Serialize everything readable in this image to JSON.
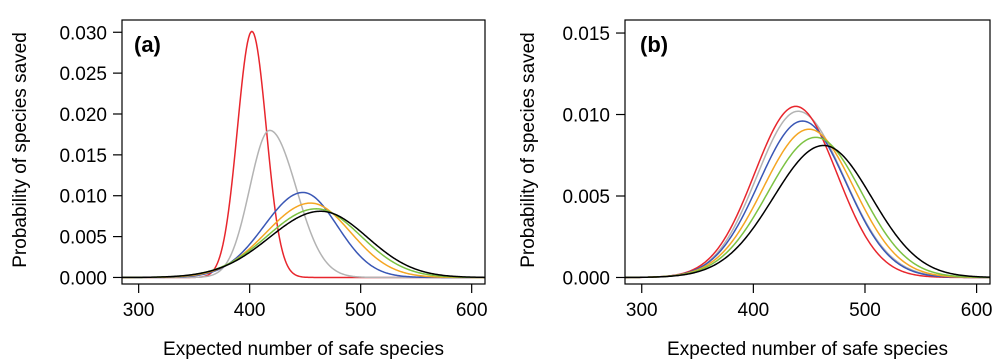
{
  "chart_data": [
    {
      "type": "line",
      "panel_label": "(a)",
      "xlabel": "Expected number of safe species",
      "ylabel": "Probability of species saved",
      "xlim": [
        285,
        612
      ],
      "ylim": [
        -0.0008,
        0.0315
      ],
      "xticks": [
        300,
        400,
        500,
        600
      ],
      "yticks": [
        0.0,
        0.005,
        0.01,
        0.015,
        0.02,
        0.025,
        0.03
      ],
      "ytick_labels": [
        "0.000",
        "0.005",
        "0.010",
        "0.015",
        "0.020",
        "0.025",
        "0.030"
      ],
      "grid": false,
      "series": [
        {
          "color": "#e8262d",
          "shape": "gaussian",
          "peak_x": 402,
          "peak_y": 0.0301,
          "sd_left": 13,
          "sd_right": 13
        },
        {
          "color": "#b3b3b3",
          "shape": "gaussian",
          "peak_x": 418,
          "peak_y": 0.018,
          "sd_left": 18,
          "sd_right": 24
        },
        {
          "color": "#3a57b5",
          "shape": "gaussian",
          "peak_x": 448,
          "peak_y": 0.0104,
          "sd_left": 35,
          "sd_right": 31
        },
        {
          "color": "#f5a623",
          "shape": "gaussian",
          "peak_x": 455,
          "peak_y": 0.0091,
          "sd_left": 40,
          "sd_right": 36
        },
        {
          "color": "#7cc242",
          "shape": "gaussian",
          "peak_x": 460,
          "peak_y": 0.0084,
          "sd_left": 44,
          "sd_right": 40
        },
        {
          "color": "#000000",
          "shape": "gaussian",
          "peak_x": 464,
          "peak_y": 0.0081,
          "sd_left": 46,
          "sd_right": 42
        }
      ]
    },
    {
      "type": "line",
      "panel_label": "(b)",
      "xlabel": "Expected number of safe species",
      "ylabel": "Probability of species saved",
      "xlim": [
        285,
        612
      ],
      "ylim": [
        -0.0004,
        0.0158
      ],
      "xticks": [
        300,
        400,
        500,
        600
      ],
      "yticks": [
        0.0,
        0.005,
        0.01,
        0.015
      ],
      "ytick_labels": [
        "0.000",
        "0.005",
        "0.010",
        "0.015"
      ],
      "grid": false,
      "series": [
        {
          "color": "#b3b3b3",
          "shape": "gaussian",
          "peak_x": 440,
          "peak_y": 0.0102,
          "sd_left": 37,
          "sd_right": 41
        },
        {
          "color": "#e8262d",
          "shape": "gaussian",
          "peak_x": 438,
          "peak_y": 0.0105,
          "sd_left": 37,
          "sd_right": 37
        },
        {
          "color": "#3a57b5",
          "shape": "gaussian",
          "peak_x": 444,
          "peak_y": 0.0096,
          "sd_left": 39,
          "sd_right": 39
        },
        {
          "color": "#f5a623",
          "shape": "gaussian",
          "peak_x": 450,
          "peak_y": 0.0091,
          "sd_left": 41,
          "sd_right": 40
        },
        {
          "color": "#7cc242",
          "shape": "gaussian",
          "peak_x": 456,
          "peak_y": 0.0086,
          "sd_left": 43,
          "sd_right": 41
        },
        {
          "color": "#000000",
          "shape": "gaussian",
          "peak_x": 463,
          "peak_y": 0.0081,
          "sd_left": 45,
          "sd_right": 43
        }
      ]
    }
  ]
}
